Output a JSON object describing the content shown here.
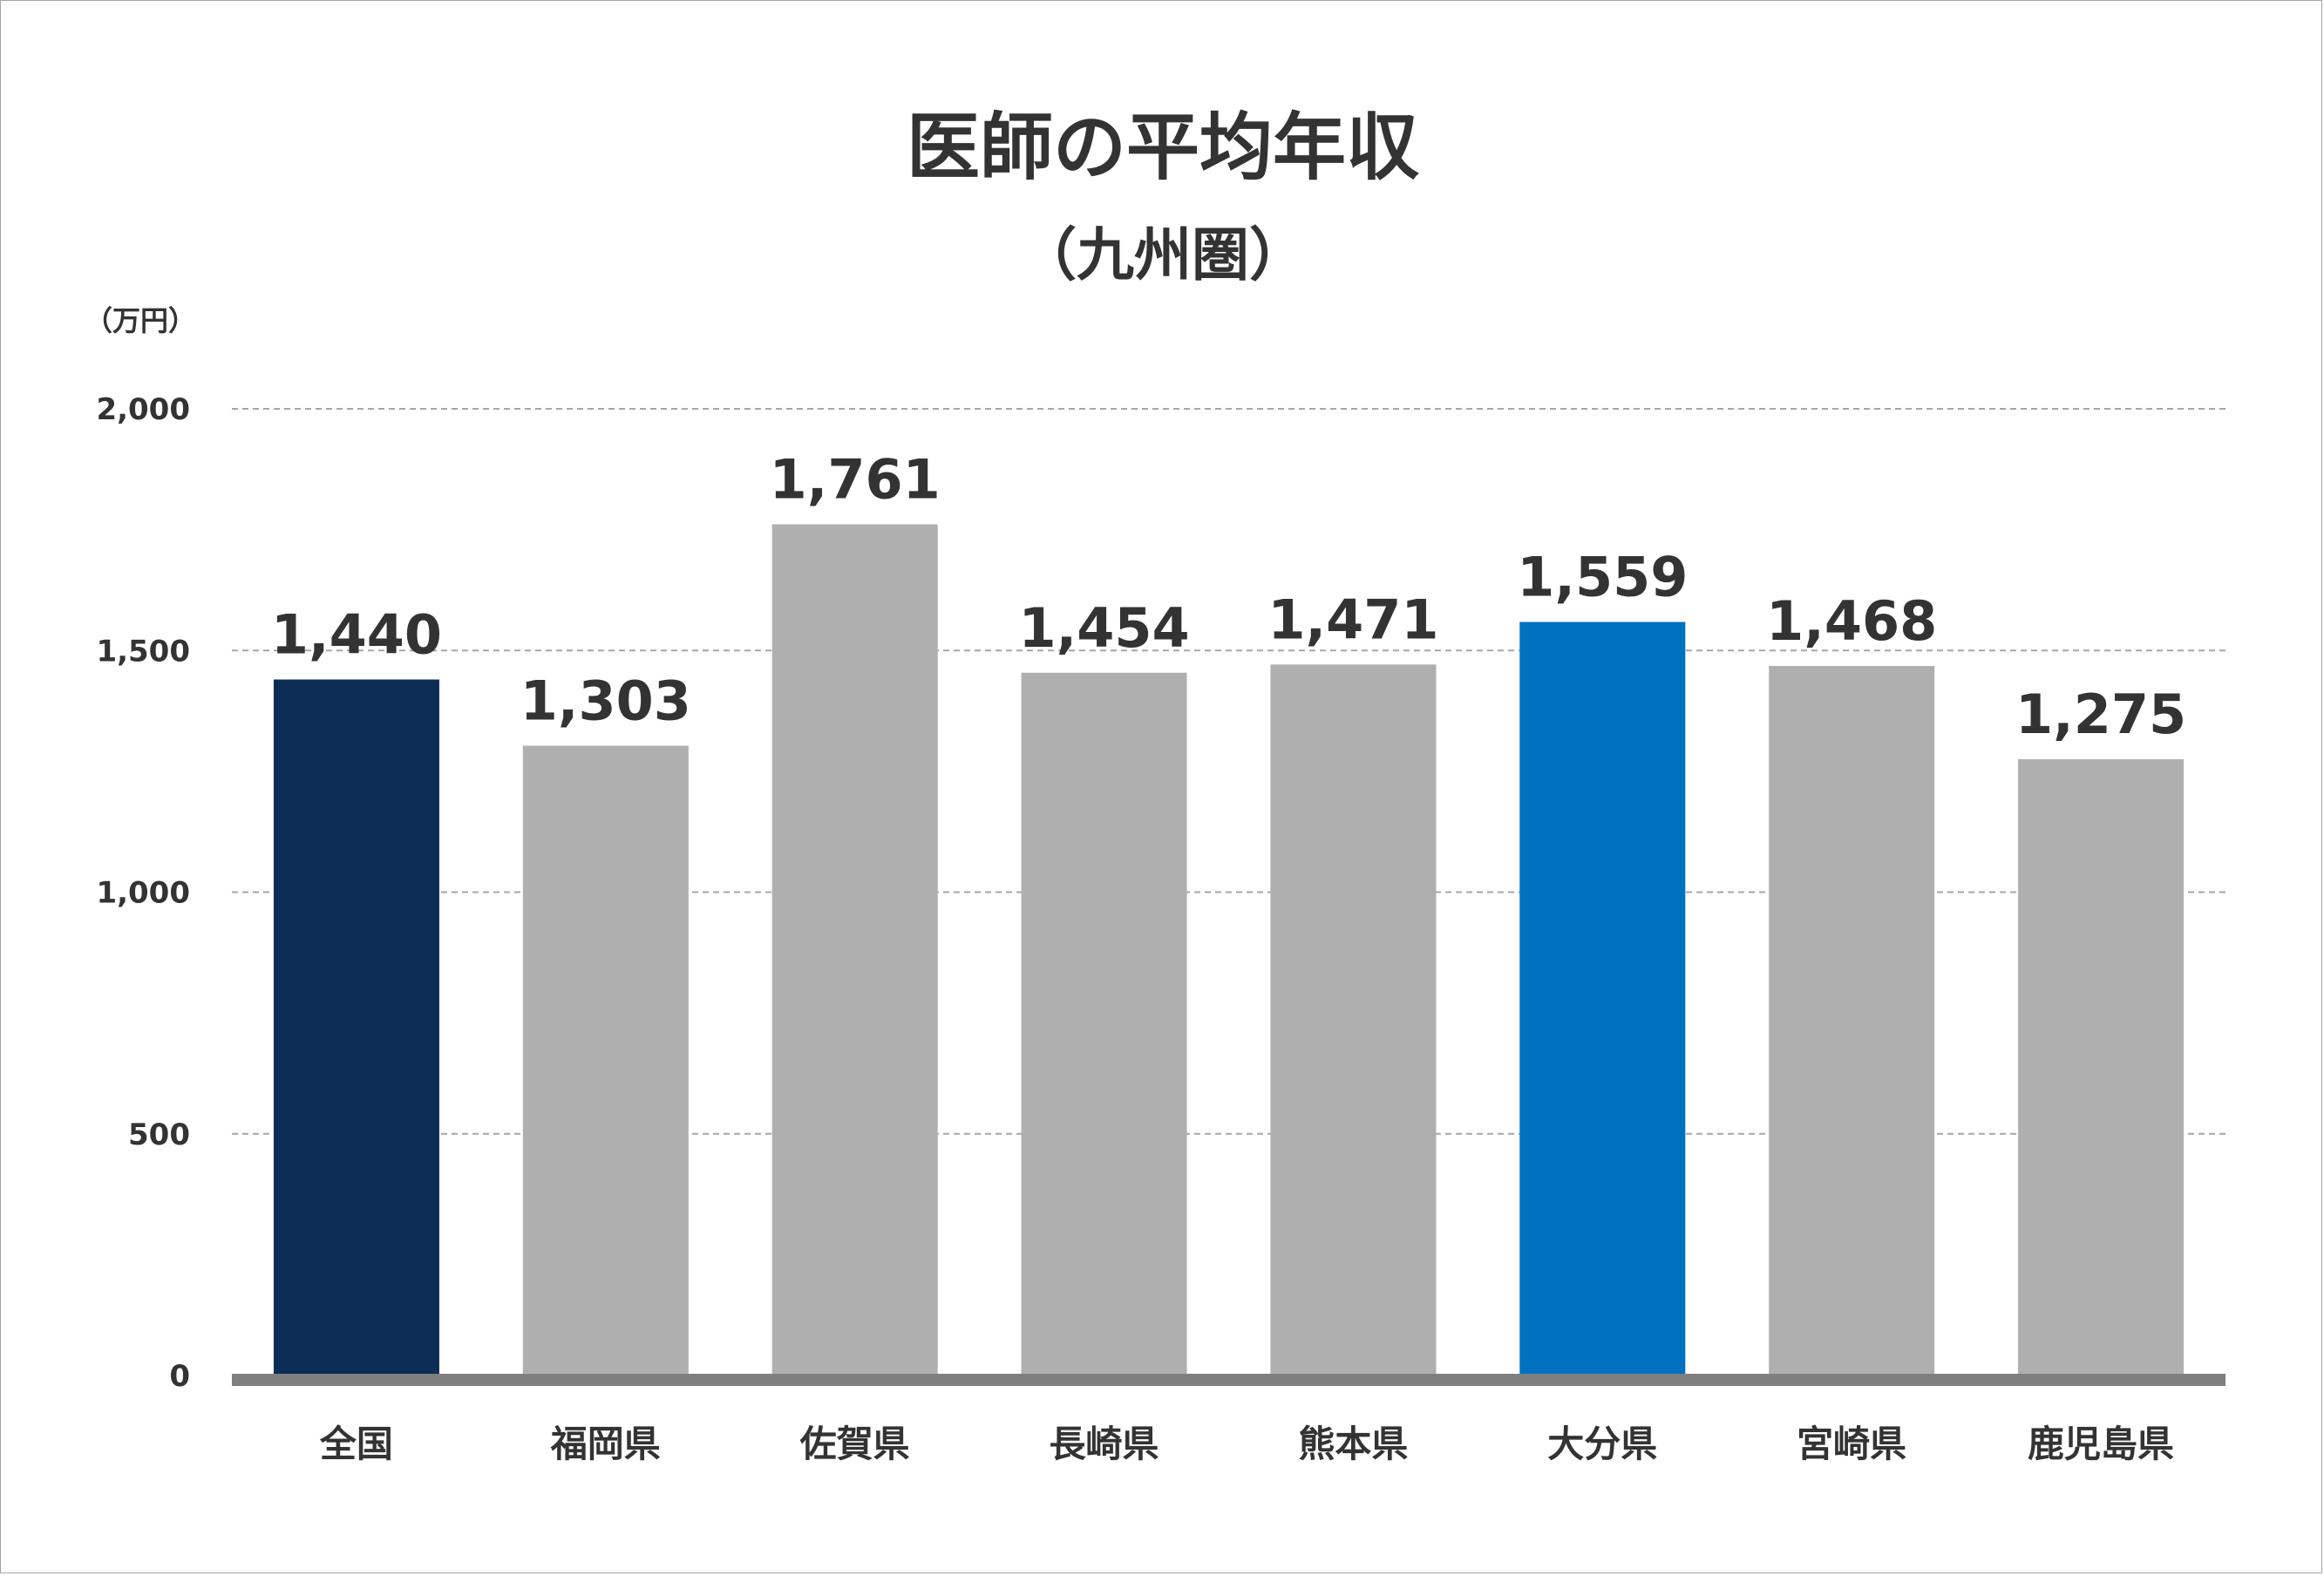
{
  "chart_data": {
    "type": "bar",
    "title": "医師の平均年収",
    "subtitle": "（九州圏）",
    "unit_label": "（万円）",
    "categories": [
      "全国",
      "福岡県",
      "佐賀県",
      "長崎県",
      "熊本県",
      "大分県",
      "宮崎県",
      "鹿児島県"
    ],
    "values": [
      1440,
      1303,
      1761,
      1454,
      1471,
      1559,
      1468,
      1275
    ],
    "data_labels": [
      "1,440",
      "1,303",
      "1,761",
      "1,454",
      "1,471",
      "1,559",
      "1,468",
      "1,275"
    ],
    "bar_colors": [
      "#0b2d56",
      "#afafaf",
      "#afafaf",
      "#afafaf",
      "#afafaf",
      "#0070c0",
      "#afafaf",
      "#afafaf"
    ],
    "ylim": [
      0,
      2000
    ],
    "yticks": [
      0,
      500,
      1000,
      1500,
      2000
    ],
    "ytick_labels": [
      "0",
      "500",
      "1,000",
      "1,500",
      "2,000"
    ],
    "grid": true,
    "grid_style": "dashed",
    "axis_color": "#7f7f7f",
    "grid_color": "#a6a6a6"
  }
}
